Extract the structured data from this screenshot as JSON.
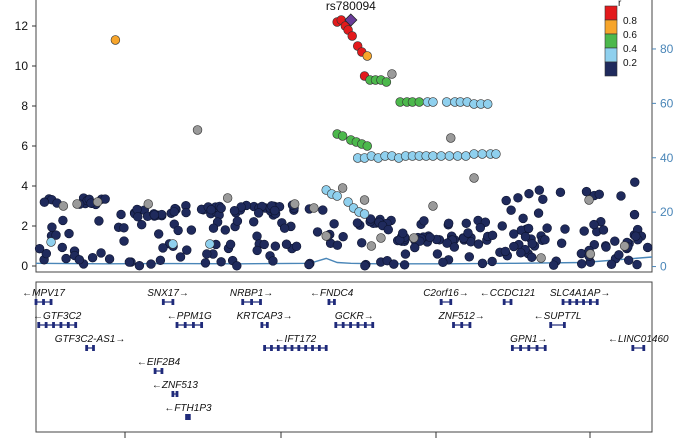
{
  "chart_data": {
    "type": "scatter",
    "title": "",
    "lead_snp": {
      "label": "rs780094",
      "x": 27.73,
      "y": 12.3
    },
    "y_left": {
      "range": [
        -0.3,
        13.3
      ],
      "ticks": [
        0,
        2,
        4,
        6,
        8,
        10,
        12
      ]
    },
    "y_right": {
      "range": [
        -2,
        98
      ],
      "ticks": [
        0,
        20,
        40,
        60,
        80
      ]
    },
    "x_range": [
      27.5,
      27.95
    ],
    "grid": false,
    "legend": {
      "position": "top-right",
      "title": "r",
      "bins": [
        {
          "label": "0.8",
          "color": "#e31a1c"
        },
        {
          "label": "0.6",
          "color": "#f7a52b"
        },
        {
          "label": "0.4",
          "color": "#4cb84c"
        },
        {
          "label": "0.2",
          "color": "#8fd0ee"
        },
        {
          "label": "",
          "color": "#1f2a5c"
        }
      ]
    },
    "colors": {
      "red": "#e31a1c",
      "orange": "#f7a52b",
      "green": "#4cb84c",
      "lightblue": "#8fd0ee",
      "navy": "#1f2a5c",
      "grey": "#9a9a9a",
      "purple": "#6a3d9a",
      "recomb": "#4a86b8",
      "axis_right": "#4a86b8"
    },
    "points": [
      [
        27.558,
        11.3,
        "orange"
      ],
      [
        27.618,
        6.8,
        "grey"
      ],
      [
        27.76,
        9.6,
        "grey"
      ],
      [
        27.72,
        12.2,
        "red"
      ],
      [
        27.723,
        12.3,
        "red"
      ],
      [
        27.726,
        12.0,
        "red"
      ],
      [
        27.728,
        11.8,
        "red"
      ],
      [
        27.731,
        11.5,
        "red"
      ],
      [
        27.735,
        11.0,
        "red"
      ],
      [
        27.738,
        10.7,
        "red"
      ],
      [
        27.742,
        10.5,
        "orange"
      ],
      [
        27.74,
        9.5,
        "red"
      ],
      [
        27.744,
        9.3,
        "green"
      ],
      [
        27.748,
        9.3,
        "green"
      ],
      [
        27.752,
        9.3,
        "green"
      ],
      [
        27.756,
        9.2,
        "green"
      ],
      [
        27.766,
        8.2,
        "green"
      ],
      [
        27.771,
        8.2,
        "green"
      ],
      [
        27.775,
        8.2,
        "green"
      ],
      [
        27.78,
        8.2,
        "green"
      ],
      [
        27.786,
        8.2,
        "lightblue"
      ],
      [
        27.79,
        8.2,
        "lightblue"
      ],
      [
        27.8,
        8.2,
        "lightblue"
      ],
      [
        27.806,
        8.2,
        "lightblue"
      ],
      [
        27.81,
        8.2,
        "lightblue"
      ],
      [
        27.815,
        8.2,
        "lightblue"
      ],
      [
        27.82,
        8.1,
        "lightblue"
      ],
      [
        27.825,
        8.1,
        "lightblue"
      ],
      [
        27.83,
        8.1,
        "lightblue"
      ],
      [
        27.72,
        6.6,
        "green"
      ],
      [
        27.724,
        6.5,
        "green"
      ],
      [
        27.73,
        6.3,
        "green"
      ],
      [
        27.734,
        6.2,
        "green"
      ],
      [
        27.738,
        6.1,
        "green"
      ],
      [
        27.742,
        6.0,
        "green"
      ],
      [
        27.735,
        5.4,
        "lightblue"
      ],
      [
        27.74,
        5.4,
        "lightblue"
      ],
      [
        27.745,
        5.5,
        "lightblue"
      ],
      [
        27.75,
        5.4,
        "lightblue"
      ],
      [
        27.755,
        5.5,
        "lightblue"
      ],
      [
        27.76,
        5.5,
        "lightblue"
      ],
      [
        27.765,
        5.4,
        "lightblue"
      ],
      [
        27.77,
        5.5,
        "lightblue"
      ],
      [
        27.775,
        5.5,
        "lightblue"
      ],
      [
        27.78,
        5.5,
        "lightblue"
      ],
      [
        27.785,
        5.5,
        "lightblue"
      ],
      [
        27.79,
        5.5,
        "lightblue"
      ],
      [
        27.796,
        5.5,
        "lightblue"
      ],
      [
        27.802,
        5.5,
        "lightblue"
      ],
      [
        27.808,
        5.5,
        "lightblue"
      ],
      [
        27.814,
        5.5,
        "lightblue"
      ],
      [
        27.82,
        5.6,
        "lightblue"
      ],
      [
        27.826,
        5.6,
        "lightblue"
      ],
      [
        27.832,
        5.6,
        "lightblue"
      ],
      [
        27.836,
        5.6,
        "lightblue"
      ],
      [
        27.712,
        3.8,
        "lightblue"
      ],
      [
        27.716,
        3.6,
        "lightblue"
      ],
      [
        27.72,
        3.5,
        "lightblue"
      ],
      [
        27.724,
        3.9,
        "grey"
      ],
      [
        27.728,
        3.2,
        "lightblue"
      ],
      [
        27.732,
        2.9,
        "lightblue"
      ],
      [
        27.736,
        2.7,
        "lightblue"
      ],
      [
        27.74,
        2.6,
        "lightblue"
      ],
      [
        27.752,
        1.4,
        "grey"
      ],
      [
        27.511,
        1.2,
        "lightblue"
      ],
      [
        27.6,
        1.1,
        "lightblue"
      ],
      [
        27.627,
        1.1,
        "lightblue"
      ],
      [
        27.803,
        6.4,
        "grey"
      ],
      [
        27.82,
        4.4,
        "grey"
      ],
      [
        27.79,
        3.0,
        "grey"
      ],
      [
        27.745,
        1.0,
        "grey"
      ],
      [
        27.869,
        0.4,
        "grey"
      ],
      [
        27.905,
        0.6,
        "grey"
      ],
      [
        27.93,
        1.0,
        "grey"
      ],
      [
        27.904,
        3.3,
        "grey"
      ],
      [
        27.74,
        3.3,
        "grey"
      ],
      [
        27.52,
        3.0,
        "grey"
      ],
      [
        27.53,
        3.1,
        "grey"
      ],
      [
        27.545,
        3.2,
        "grey"
      ],
      [
        27.582,
        3.1,
        "grey"
      ],
      [
        27.64,
        3.4,
        "grey"
      ],
      [
        27.689,
        3.1,
        "grey"
      ],
      [
        27.703,
        2.9,
        "grey"
      ],
      [
        27.712,
        1.5,
        "grey"
      ],
      [
        27.776,
        1.4,
        "grey"
      ]
    ],
    "navy_bands": [
      {
        "x_from": 27.5,
        "x_to": 27.555,
        "y_from": 3.0,
        "y_to": 3.4,
        "count": 14
      },
      {
        "x_from": 27.555,
        "x_to": 27.6,
        "y_from": 2.45,
        "y_to": 2.85,
        "count": 16
      },
      {
        "x_from": 27.6,
        "x_to": 27.71,
        "y_from": 2.55,
        "y_to": 3.05,
        "count": 40
      },
      {
        "x_from": 27.742,
        "x_to": 27.76,
        "y_from": 2.0,
        "y_to": 2.4,
        "count": 8
      },
      {
        "x_from": 27.76,
        "x_to": 27.835,
        "y_from": 1.2,
        "y_to": 1.5,
        "count": 26
      },
      {
        "x_from": 27.5,
        "x_to": 27.95,
        "y_from": 0.0,
        "y_to": 2.3,
        "count": 150
      },
      {
        "x_from": 27.835,
        "x_to": 27.95,
        "y_from": 0.0,
        "y_to": 4.2,
        "count": 30
      }
    ],
    "recombination_rate": {
      "x": [
        27.5,
        27.55,
        27.6,
        27.65,
        27.7,
        27.712,
        27.72,
        27.73,
        27.75,
        27.8,
        27.85,
        27.9,
        27.95
      ],
      "y": [
        1.2,
        1.0,
        1.1,
        1.0,
        1.2,
        3.0,
        1.5,
        1.2,
        1.0,
        1.0,
        1.2,
        1.5,
        3.5
      ]
    },
    "genes": [
      {
        "name": "MPV17",
        "start": 27.5,
        "end": 27.511,
        "strand": "-",
        "row": 0
      },
      {
        "name": "SNX17",
        "start": 27.593,
        "end": 27.6,
        "strand": "+",
        "row": 0
      },
      {
        "name": "NRBP1",
        "start": 27.651,
        "end": 27.664,
        "strand": "+",
        "row": 0
      },
      {
        "name": "FNDC4",
        "start": 27.714,
        "end": 27.718,
        "strand": "-",
        "row": 0
      },
      {
        "name": "C2orf16",
        "start": 27.796,
        "end": 27.803,
        "strand": "+",
        "row": 0
      },
      {
        "name": "CCDC121",
        "start": 27.842,
        "end": 27.847,
        "strand": "-",
        "row": 0
      },
      {
        "name": "SLC4A1AP",
        "start": 27.885,
        "end": 27.91,
        "strand": "+",
        "row": 0
      },
      {
        "name": "GTF3C2",
        "start": 27.502,
        "end": 27.529,
        "strand": "-",
        "row": 1
      },
      {
        "name": "PPM1G",
        "start": 27.603,
        "end": 27.621,
        "strand": "-",
        "row": 1
      },
      {
        "name": "KRTCAP3",
        "start": 27.665,
        "end": 27.669,
        "strand": "+",
        "row": 1
      },
      {
        "name": "GCKR",
        "start": 27.719,
        "end": 27.746,
        "strand": "+",
        "row": 1
      },
      {
        "name": "ZNF512",
        "start": 27.805,
        "end": 27.817,
        "strand": "+",
        "row": 1
      },
      {
        "name": "SUPT7L",
        "start": 27.876,
        "end": 27.886,
        "strand": "-",
        "row": 1
      },
      {
        "name": "GTF3C2-AS1",
        "start": 27.537,
        "end": 27.542,
        "strand": "+",
        "row": 2
      },
      {
        "name": "IFT172",
        "start": 27.667,
        "end": 27.712,
        "strand": "-",
        "row": 2
      },
      {
        "name": "GPN1",
        "start": 27.848,
        "end": 27.872,
        "strand": "+",
        "row": 2
      },
      {
        "name": "LINC01460",
        "start": 27.936,
        "end": 27.944,
        "strand": "-",
        "row": 2
      },
      {
        "name": "EIF2B4",
        "start": 27.587,
        "end": 27.592,
        "strand": "-",
        "row": 3
      },
      {
        "name": "ZNF513",
        "start": 27.6,
        "end": 27.603,
        "strand": "-",
        "row": 4
      },
      {
        "name": "FTH1P3",
        "start": 27.61,
        "end": 27.612,
        "strand": "-",
        "row": 5
      }
    ]
  }
}
